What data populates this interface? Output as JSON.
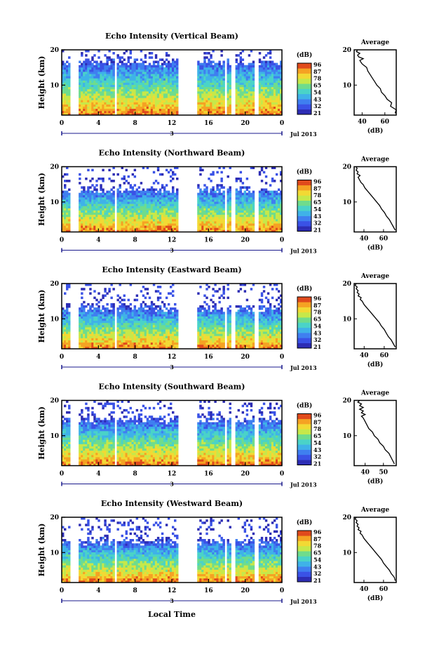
{
  "figure": {
    "xlabel_bottom": "Local Time",
    "colorbar_unit": "(dB)",
    "colorbar_ticks": [
      "96",
      "87",
      "78",
      "65",
      "54",
      "43",
      "32",
      "21"
    ],
    "colorscale": [
      "#2d2db4",
      "#3a52e6",
      "#3f7ff0",
      "#3fb2e8",
      "#4ad3c8",
      "#6fdc8c",
      "#c6e84a",
      "#f2d934",
      "#f5a223",
      "#e04a1c"
    ],
    "date_label": "Jul 2013",
    "day_label": "3"
  },
  "chart_data": [
    {
      "type": "heatmap",
      "title": "Echo Intensity (Vertical Beam)",
      "ylabel": "Height (km)",
      "xticks": [
        "0",
        "4",
        "8",
        "12",
        "16",
        "20",
        "0"
      ],
      "yticks": [
        "20",
        "10"
      ],
      "xlim": [
        0,
        24
      ],
      "ylim": [
        1.5,
        20
      ],
      "colorbar_range_db": [
        21,
        96
      ],
      "data_gaps_hours": [
        [
          1.0,
          1.9
        ],
        [
          5.8,
          6.1
        ],
        [
          12.7,
          14.8
        ],
        [
          17.7,
          18.1
        ],
        [
          18.5,
          18.9
        ],
        [
          21.0,
          21.5
        ]
      ],
      "echo_top_km": 16.5,
      "profile": {
        "title": "Average",
        "xlabel": "(dB)",
        "xticks": [
          "40",
          "60"
        ],
        "yticks": [
          "20",
          "10"
        ],
        "xlim": [
          33,
          70
        ],
        "ylim": [
          1.5,
          20
        ],
        "x": [
          69,
          70,
          65,
          66,
          62,
          60,
          57,
          56,
          53,
          51,
          49,
          47,
          45,
          44,
          42,
          40,
          39,
          38,
          41,
          37,
          36,
          38,
          35,
          36
        ],
        "y": [
          2,
          3,
          4,
          5,
          6,
          7,
          8,
          9,
          10,
          11,
          12,
          13,
          14,
          15,
          15.5,
          16,
          16.5,
          17,
          17.5,
          18,
          18.5,
          19,
          19.5,
          20
        ]
      }
    },
    {
      "type": "heatmap",
      "title": "Echo Intensity (Northward Beam)",
      "ylabel": "Height (km)",
      "xticks": [
        "0",
        "4",
        "8",
        "12",
        "16",
        "20",
        "0"
      ],
      "yticks": [
        "20",
        "10"
      ],
      "xlim": [
        0,
        24
      ],
      "ylim": [
        1.5,
        20
      ],
      "colorbar_range_db": [
        21,
        96
      ],
      "data_gaps_hours": [
        [
          1.0,
          1.9
        ],
        [
          5.8,
          6.1
        ],
        [
          12.7,
          14.8
        ],
        [
          17.7,
          18.1
        ],
        [
          18.5,
          18.9
        ],
        [
          21.0,
          21.5
        ]
      ],
      "echo_top_km": 13.5,
      "profile": {
        "title": "Average",
        "xlabel": "(dB)",
        "xticks": [
          "40",
          "60"
        ],
        "yticks": [
          "20",
          "10"
        ],
        "xlim": [
          30,
          73
        ],
        "ylim": [
          1.5,
          20
        ],
        "x": [
          72,
          70,
          68,
          66,
          63,
          61,
          58,
          56,
          53,
          50,
          47,
          44,
          41,
          39,
          37,
          36,
          35,
          34,
          36,
          33,
          34,
          32,
          33,
          32
        ],
        "y": [
          2,
          3,
          4,
          5,
          6,
          7,
          8,
          9,
          10,
          11,
          12,
          13,
          14,
          15,
          15.5,
          16,
          16.5,
          17,
          17.5,
          18,
          18.5,
          19,
          19.5,
          20
        ]
      }
    },
    {
      "type": "heatmap",
      "title": "Echo Intensity (Eastward Beam)",
      "ylabel": "Height (km)",
      "xticks": [
        "0",
        "4",
        "8",
        "12",
        "16",
        "20",
        "0"
      ],
      "yticks": [
        "20",
        "10"
      ],
      "xlim": [
        0,
        24
      ],
      "ylim": [
        1.5,
        20
      ],
      "colorbar_range_db": [
        21,
        96
      ],
      "data_gaps_hours": [
        [
          1.0,
          1.9
        ],
        [
          5.8,
          6.1
        ],
        [
          12.7,
          14.8
        ],
        [
          17.7,
          18.1
        ],
        [
          18.5,
          18.9
        ],
        [
          21.0,
          21.5
        ]
      ],
      "echo_top_km": 13.0,
      "profile": {
        "title": "Average",
        "xlabel": "(dB)",
        "xticks": [
          "40",
          "60"
        ],
        "yticks": [
          "20",
          "10"
        ],
        "xlim": [
          30,
          72
        ],
        "ylim": [
          1.5,
          20
        ],
        "x": [
          71,
          69,
          67,
          64,
          62,
          60,
          57,
          55,
          52,
          49,
          46,
          43,
          40,
          38,
          36,
          37,
          34,
          35,
          33,
          34,
          32,
          33,
          31,
          32
        ],
        "y": [
          2,
          3,
          4,
          5,
          6,
          7,
          8,
          9,
          10,
          11,
          12,
          13,
          14,
          15,
          15.5,
          16,
          16.5,
          17,
          17.5,
          18,
          18.5,
          19,
          19.5,
          20
        ]
      }
    },
    {
      "type": "heatmap",
      "title": "Echo Intensity (Southward Beam)",
      "ylabel": "Height (km)",
      "xticks": [
        "0",
        "4",
        "8",
        "12",
        "16",
        "20",
        "0"
      ],
      "yticks": [
        "20",
        "10"
      ],
      "xlim": [
        0,
        24
      ],
      "ylim": [
        1.5,
        20
      ],
      "colorbar_range_db": [
        21,
        96
      ],
      "data_gaps_hours": [
        [
          1.0,
          1.9
        ],
        [
          5.8,
          6.1
        ],
        [
          12.7,
          14.8
        ],
        [
          17.7,
          18.1
        ],
        [
          18.5,
          18.9
        ],
        [
          21.0,
          21.5
        ]
      ],
      "echo_top_km": 14.5,
      "profile": {
        "title": "Average",
        "xlabel": "(dB)",
        "xticks": [
          "40",
          "50"
        ],
        "yticks": [
          "20",
          "10"
        ],
        "xlim": [
          34,
          57
        ],
        "ylim": [
          1.5,
          20
        ],
        "x": [
          56,
          55,
          54,
          53,
          51,
          50,
          48,
          47,
          45,
          44,
          42,
          41,
          40,
          39,
          38,
          40,
          38,
          39,
          37,
          39,
          37,
          38,
          36,
          37
        ],
        "y": [
          2,
          3,
          4,
          5,
          6,
          7,
          8,
          9,
          10,
          11,
          12,
          13,
          14,
          15,
          15.5,
          16,
          16.5,
          17,
          17.5,
          18,
          18.5,
          19,
          19.5,
          20
        ]
      }
    },
    {
      "type": "heatmap",
      "title": "Echo Intensity (Westward Beam)",
      "ylabel": "Height (km)",
      "xticks": [
        "0",
        "4",
        "8",
        "12",
        "16",
        "20",
        "0"
      ],
      "yticks": [
        "20",
        "10"
      ],
      "xlim": [
        0,
        24
      ],
      "ylim": [
        1.5,
        20
      ],
      "colorbar_range_db": [
        21,
        96
      ],
      "data_gaps_hours": [
        [
          1.0,
          1.9
        ],
        [
          5.8,
          6.1
        ],
        [
          12.7,
          14.8
        ],
        [
          17.7,
          18.1
        ],
        [
          18.5,
          18.9
        ],
        [
          21.0,
          21.5
        ]
      ],
      "echo_top_km": 13.0,
      "profile": {
        "title": "Average",
        "xlabel": "(dB)",
        "xticks": [
          "40",
          "60"
        ],
        "yticks": [
          "20",
          "10"
        ],
        "xlim": [
          30,
          73
        ],
        "ylim": [
          1.5,
          20
        ],
        "x": [
          72,
          71,
          68,
          66,
          63,
          60,
          58,
          55,
          52,
          49,
          46,
          43,
          40,
          38,
          36,
          37,
          34,
          35,
          33,
          34,
          32,
          33,
          31,
          32
        ],
        "y": [
          2,
          3,
          4,
          5,
          6,
          7,
          8,
          9,
          10,
          11,
          12,
          13,
          14,
          15,
          15.5,
          16,
          16.5,
          17,
          17.5,
          18,
          18.5,
          19,
          19.5,
          20
        ]
      }
    }
  ]
}
